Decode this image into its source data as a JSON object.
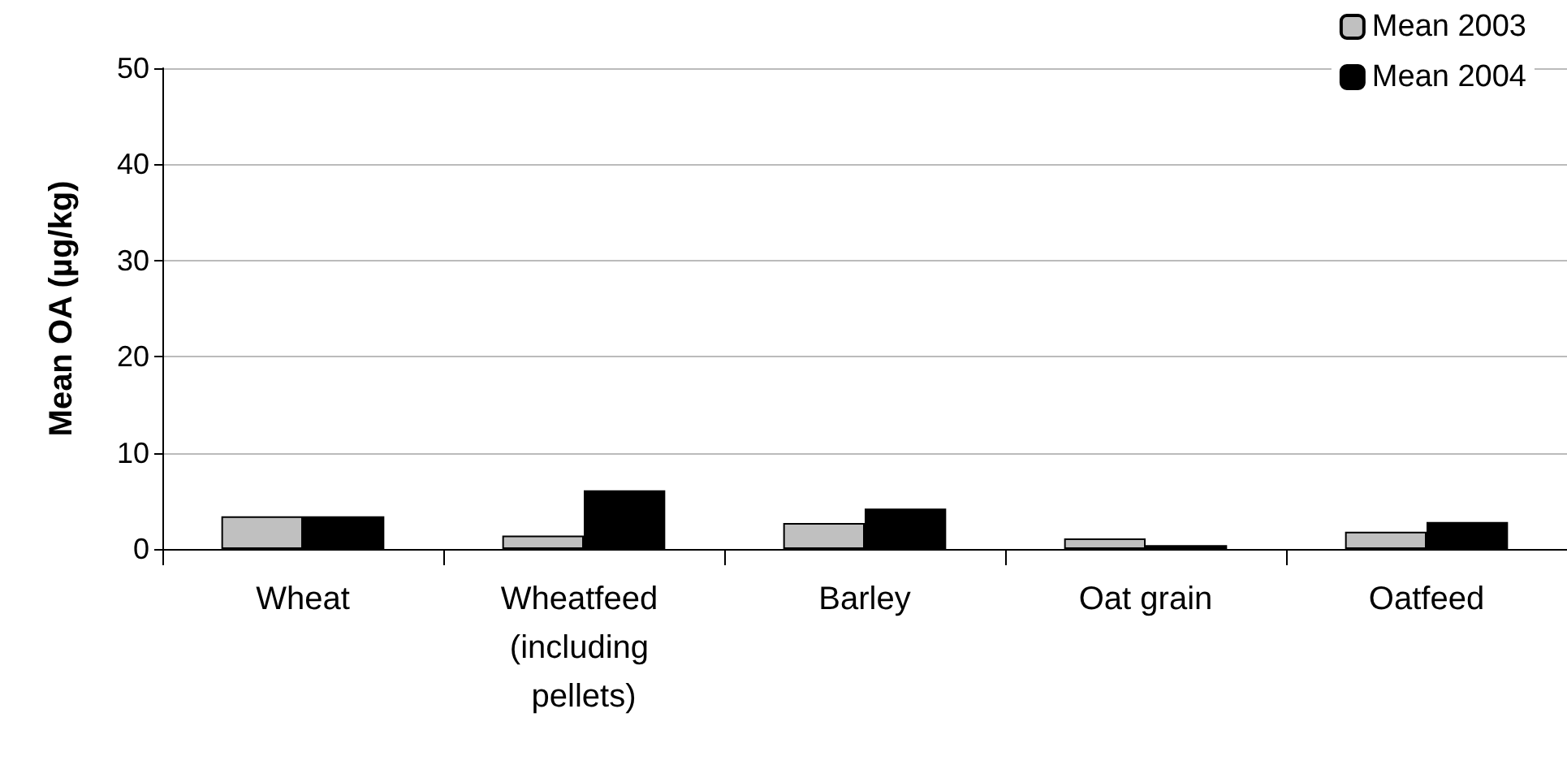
{
  "chart_data": {
    "type": "bar",
    "ylabel": "Mean OA (µg/kg)",
    "categories": [
      "Wheat",
      "Wheatfeed (including pellets)",
      "Barley",
      "Oat grain",
      "Oatfeed"
    ],
    "series": [
      {
        "name": "Mean 2003",
        "color": "#c0c0c0",
        "values": [
          3.4,
          1.4,
          2.7,
          1.1,
          1.8
        ]
      },
      {
        "name": "Mean 2004",
        "color": "#000000",
        "values": [
          3.4,
          6.1,
          4.2,
          0.4,
          2.8
        ]
      }
    ],
    "ylim": [
      0,
      50
    ],
    "yticks": [
      0,
      10,
      20,
      30,
      40,
      50
    ],
    "grid": "y",
    "legend": "top right"
  }
}
